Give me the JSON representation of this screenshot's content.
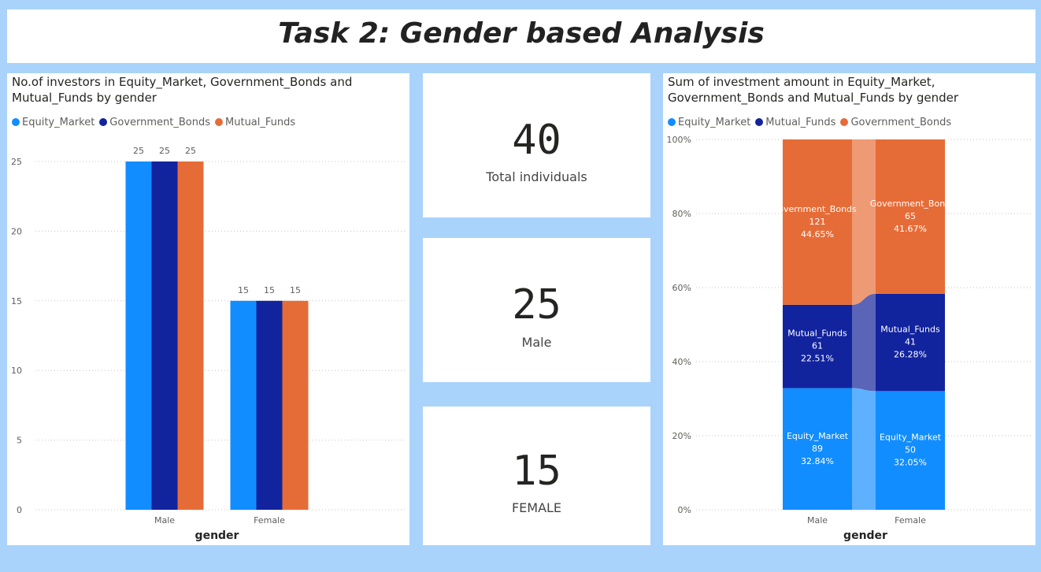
{
  "page_title": "Task 2: Gender based Analysis",
  "cards": [
    {
      "value": "40",
      "label": "Total individuals"
    },
    {
      "value": "25",
      "label": "Male"
    },
    {
      "value": "15",
      "label": "FEMALE"
    }
  ],
  "chart_data": [
    {
      "type": "bar",
      "title": "No.of investors in Equity_Market, Government_Bonds and Mutual_Funds by gender",
      "xlabel": "gender",
      "ylabel": "",
      "categories": [
        "Male",
        "Female"
      ],
      "series": [
        {
          "name": "Equity_Market",
          "values": [
            25,
            15
          ],
          "color": "#118dff"
        },
        {
          "name": "Government_Bonds",
          "values": [
            25,
            15
          ],
          "color": "#12239e"
        },
        {
          "name": "Mutual_Funds",
          "values": [
            25,
            15
          ],
          "color": "#e66c37"
        }
      ],
      "ylim": [
        0,
        25
      ],
      "yticks": [
        "0",
        "5",
        "10",
        "15",
        "20",
        "25"
      ],
      "data_labels": true,
      "grid": true,
      "legend_position": "top-left"
    },
    {
      "type": "bar",
      "stacked": "100%",
      "title": "Sum of investment amount in Equity_Market, Government_Bonds and Mutual_Funds by gender",
      "xlabel": "gender",
      "ylabel": "",
      "categories": [
        "Male",
        "Female"
      ],
      "legend": [
        "Equity_Market",
        "Mutual_Funds",
        "Government_Bonds"
      ],
      "series": [
        {
          "name": "Equity_Market",
          "values": [
            89,
            50
          ],
          "percents": [
            "32.84%",
            "32.05%"
          ],
          "labels": [
            "Equity_Market",
            "Equity_Market"
          ],
          "color": "#118dff"
        },
        {
          "name": "Mutual_Funds",
          "values": [
            61,
            41
          ],
          "percents": [
            "22.51%",
            "26.28%"
          ],
          "labels": [
            "Mutual_Funds",
            "Mutual_Funds"
          ],
          "color": "#12239e"
        },
        {
          "name": "Government_Bonds",
          "values": [
            121,
            65
          ],
          "percents": [
            "44.65%",
            "41.67%"
          ],
          "labels": [
            "overnment_Bonds",
            "Government_Bond"
          ],
          "color": "#e66c37"
        }
      ],
      "yticks": [
        "0%",
        "20%",
        "40%",
        "60%",
        "80%",
        "100%"
      ],
      "ylim": [
        0,
        100
      ],
      "data_labels": true,
      "grid": true,
      "legend_position": "top-left"
    }
  ]
}
